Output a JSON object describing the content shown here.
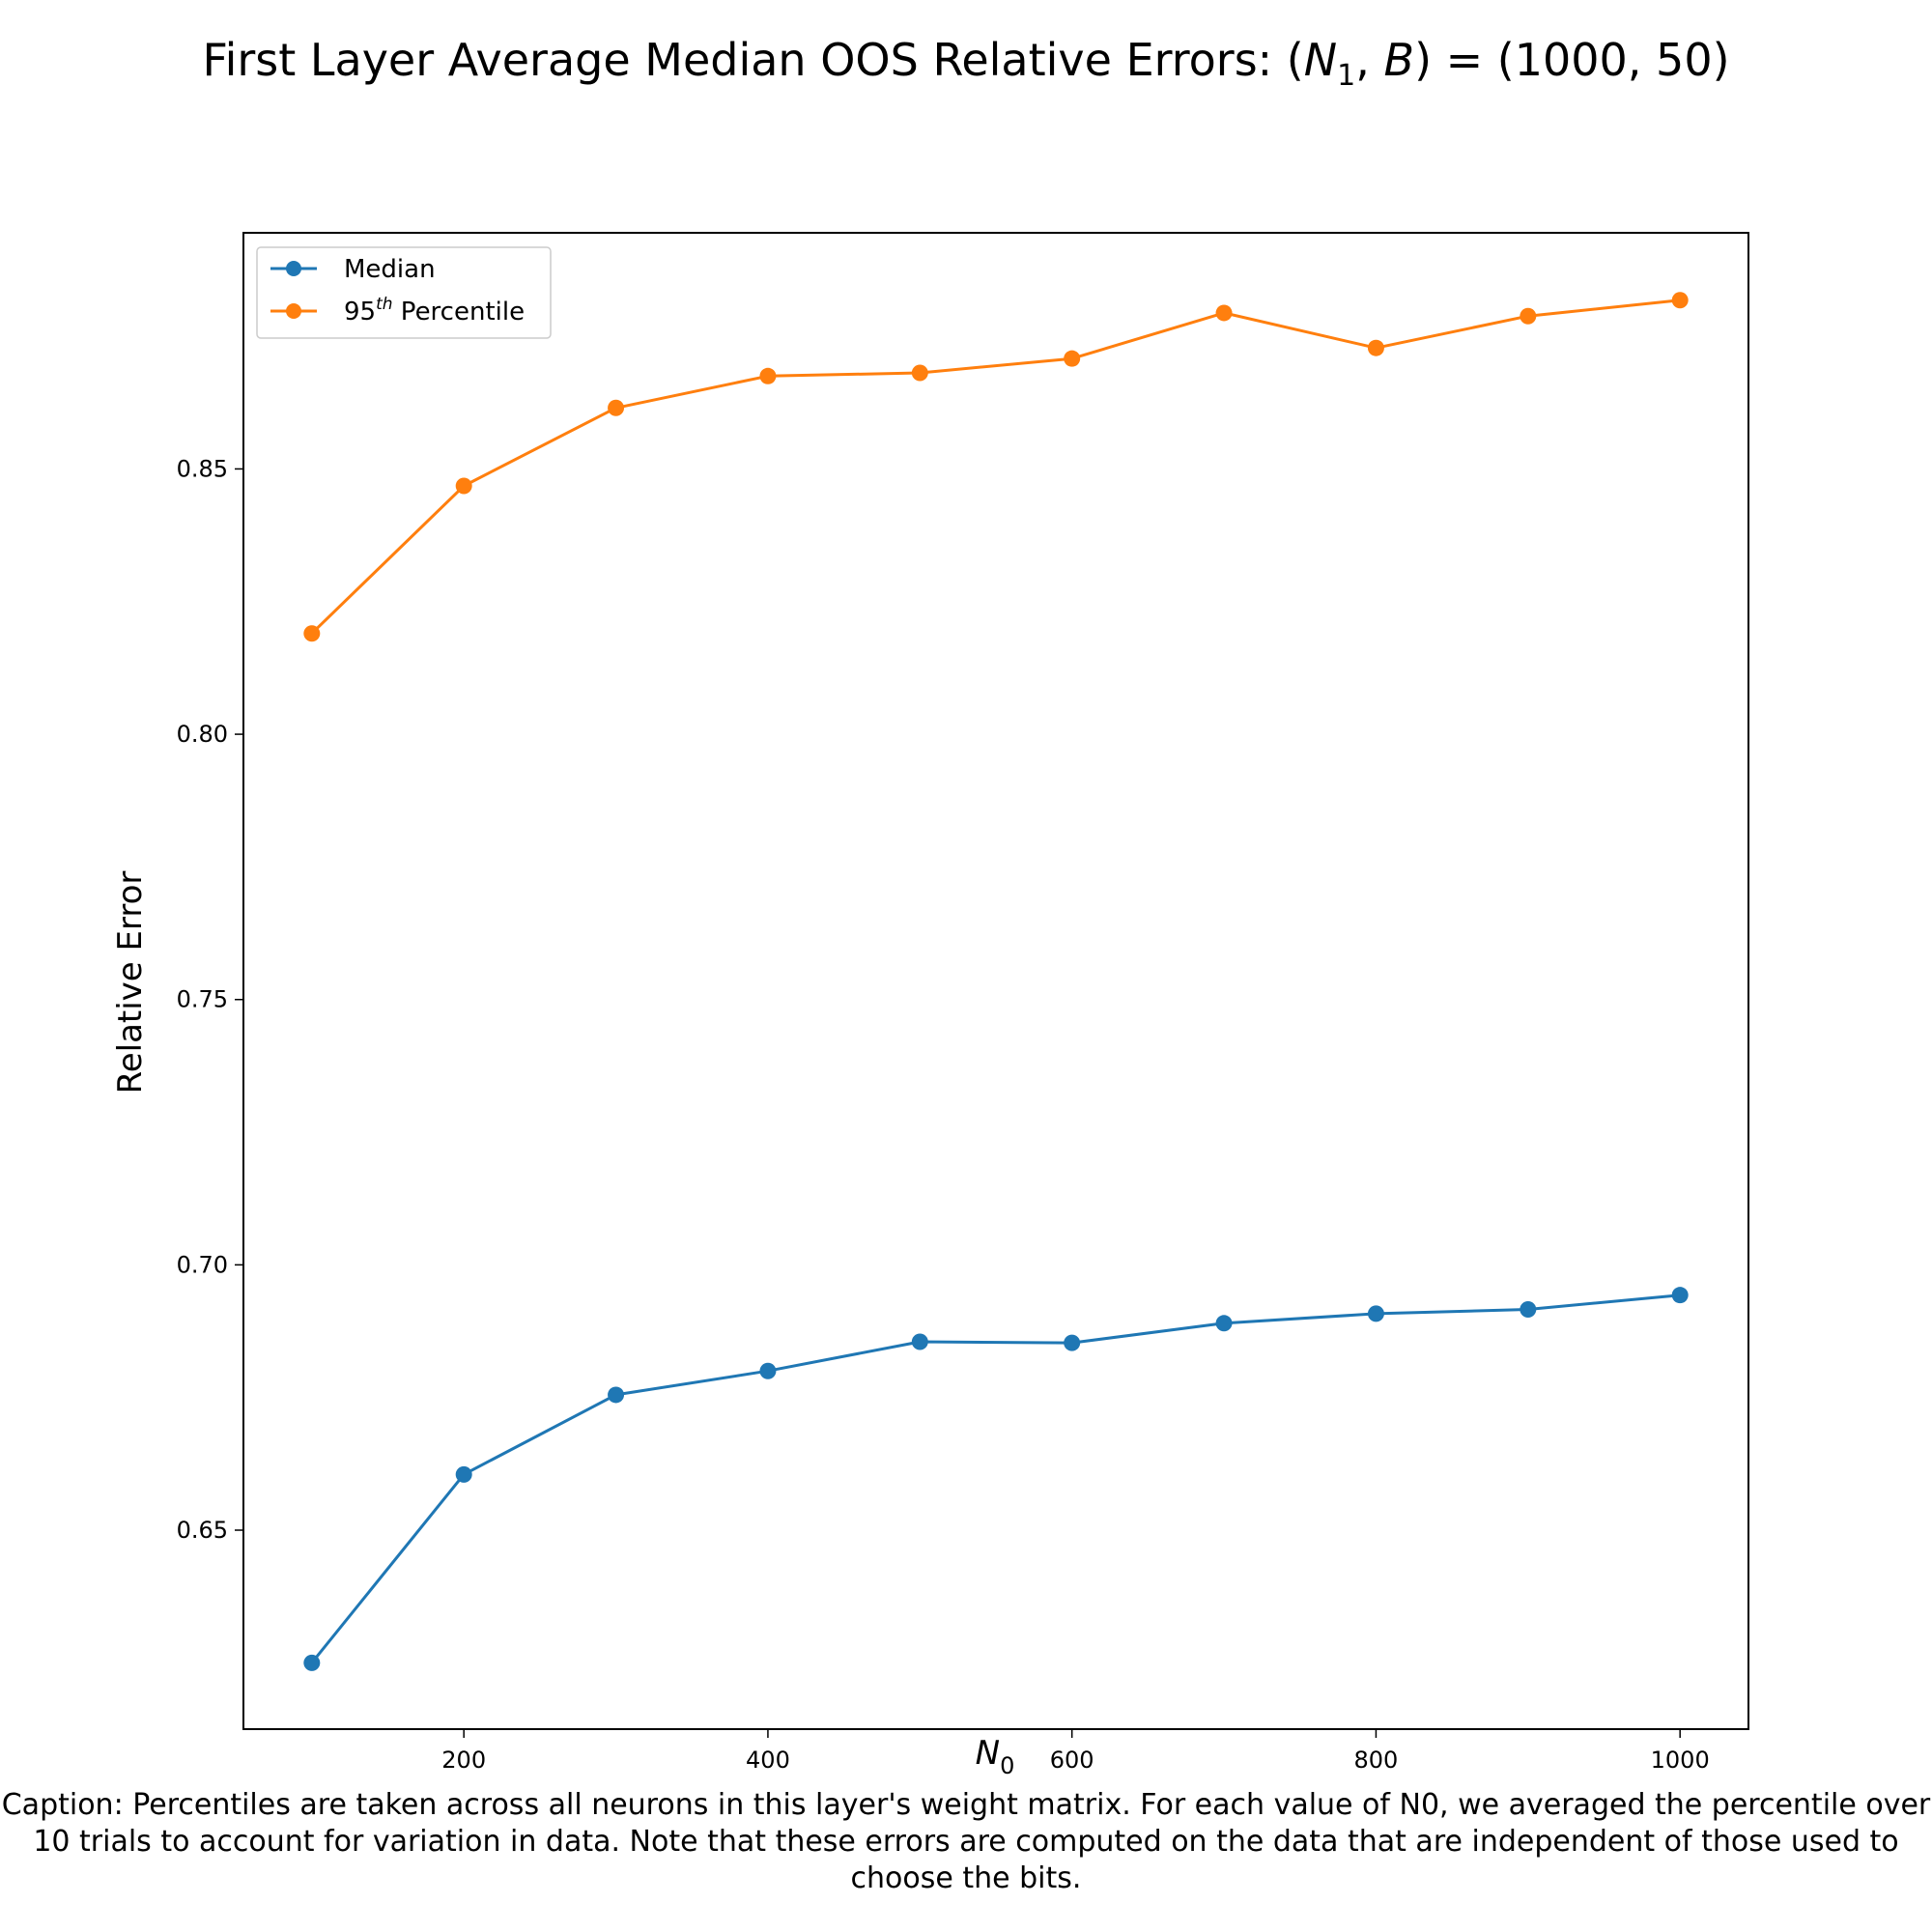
{
  "chart_data": {
    "type": "line",
    "title_main": "First Layer Average Median OOS Relative Errors: (",
    "title_var1": "N",
    "title_var1_sub": "1",
    "title_sep": ", ",
    "title_var2": "B",
    "title_tail": ") = (1000, 50)",
    "xlabel_var": "N",
    "xlabel_sub": "0",
    "ylabel": "Relative Error",
    "x": [
      100,
      200,
      300,
      400,
      500,
      600,
      700,
      800,
      900,
      1000
    ],
    "series": [
      {
        "name": "Median",
        "color": "#1f77b4",
        "values": [
          0.625,
          0.6605,
          0.6755,
          0.68,
          0.6855,
          0.6853,
          0.689,
          0.6908,
          0.6916,
          0.6943
        ]
      },
      {
        "name_base": "95",
        "name_sup": "th",
        "name_rest": " Percentile",
        "color": "#ff7f0e",
        "values": [
          0.819,
          0.8468,
          0.8615,
          0.8675,
          0.8681,
          0.8708,
          0.8794,
          0.8728,
          0.8788,
          0.8818
        ]
      }
    ],
    "xlim": [
      55,
      1045
    ],
    "ylim": [
      0.6125,
      0.8945
    ],
    "xticks": [
      200,
      400,
      600,
      800,
      1000
    ],
    "yticks": [
      0.65,
      0.7,
      0.75,
      0.8,
      0.85
    ],
    "legend": "top-left",
    "grid": false
  },
  "caption": "Caption: Percentiles are taken across all neurons in this layer's weight matrix. For each value of N0, we averaged the percentile over 10 trials to account for variation in data. Note that these errors are computed on the data that are independent of those used to choose the bits."
}
